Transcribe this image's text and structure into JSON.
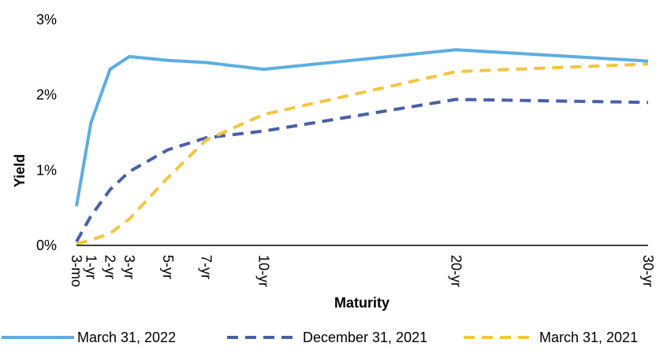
{
  "chart_data": {
    "type": "line",
    "title": "",
    "xlabel": "Maturity",
    "ylabel": "Yield",
    "x_ticks": [
      {
        "label": "3-mo",
        "years": 0.25
      },
      {
        "label": "1-yr",
        "years": 1
      },
      {
        "label": "2-yr",
        "years": 2
      },
      {
        "label": "3-yr",
        "years": 3
      },
      {
        "label": "5-yr",
        "years": 5
      },
      {
        "label": "7-yr",
        "years": 7
      },
      {
        "label": "10-yr",
        "years": 10
      },
      {
        "label": "20-yr",
        "years": 20
      },
      {
        "label": "30-yr",
        "years": 30
      }
    ],
    "y_ticks": [
      "0%",
      "1%",
      "2%",
      "3%"
    ],
    "ylim": [
      0,
      3
    ],
    "grid": false,
    "legend_position": "bottom",
    "series": [
      {
        "name": "March 31, 2022",
        "color": "#5DADE2",
        "dash": "solid",
        "values": [
          0.52,
          1.63,
          2.34,
          2.51,
          2.46,
          2.43,
          2.34,
          2.6,
          2.45
        ]
      },
      {
        "name": "December 31, 2021",
        "color": "#4A5FA8",
        "dash": "dashed",
        "values": [
          0.05,
          0.39,
          0.74,
          0.98,
          1.27,
          1.43,
          1.52,
          1.94,
          1.9
        ]
      },
      {
        "name": "March 31, 2021",
        "color": "#F4C542",
        "dash": "dashed",
        "values": [
          0.02,
          0.07,
          0.16,
          0.35,
          0.9,
          1.4,
          1.74,
          2.31,
          2.41
        ]
      }
    ]
  }
}
